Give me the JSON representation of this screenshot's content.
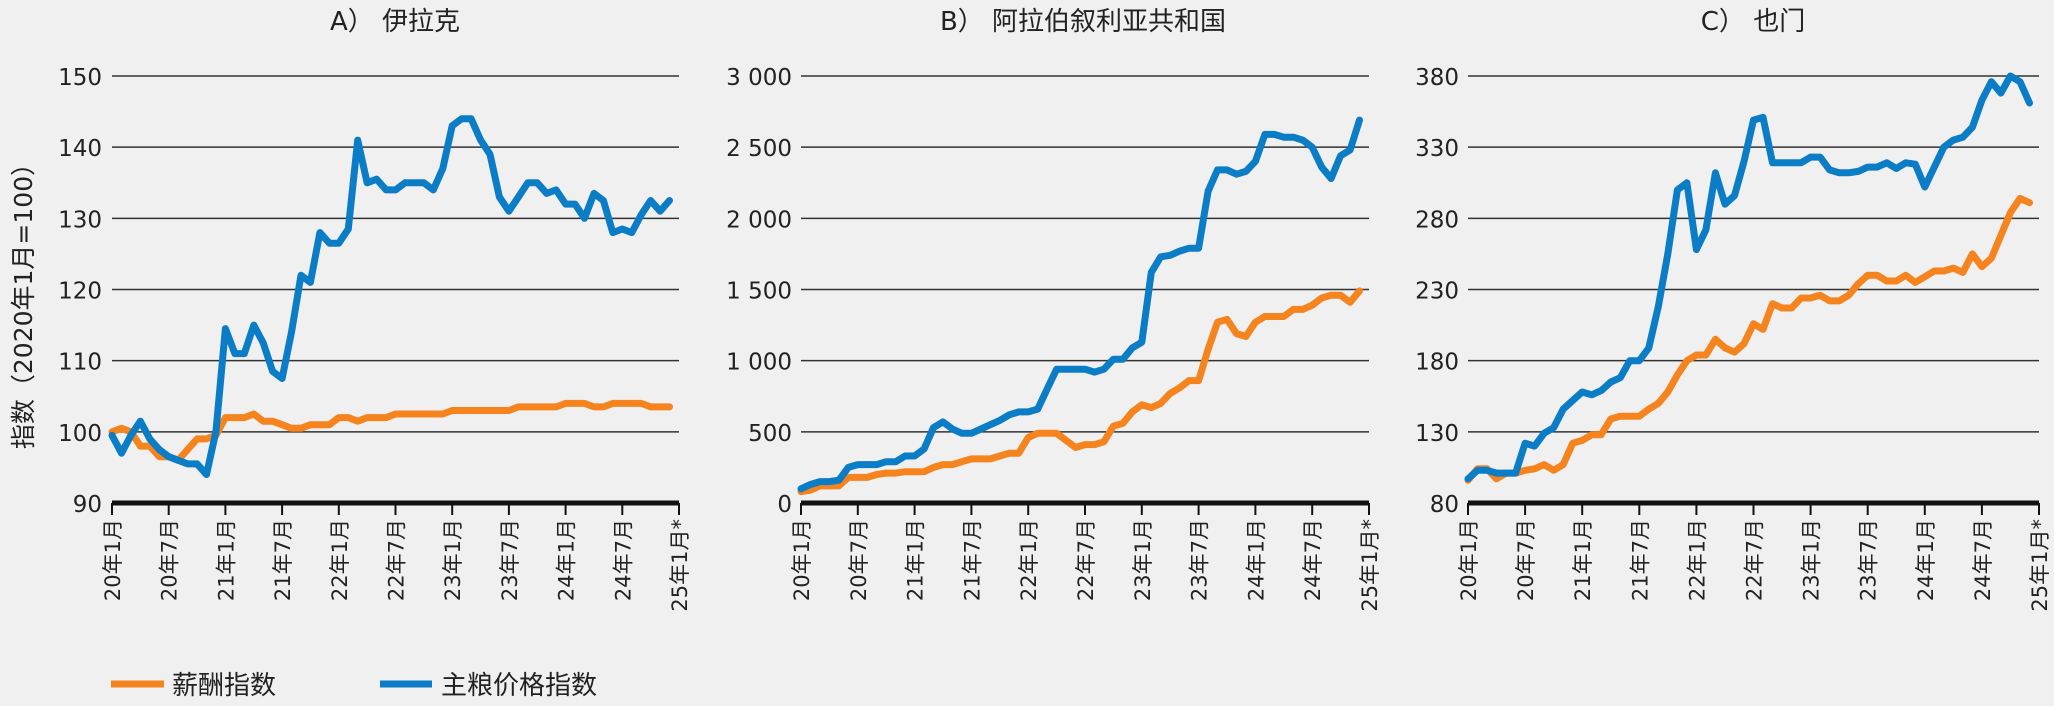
{
  "y_axis_title": "指数（2020年1月=100）",
  "colors": {
    "wage": "#f5841f",
    "staple": "#0b7cc6"
  },
  "legend": [
    {
      "label": "薪酬指数",
      "series": "wage"
    },
    {
      "label": "主粮价格指数",
      "series": "staple"
    }
  ],
  "chart_data": [
    {
      "type": "line",
      "title": "A） 伊拉克",
      "ylabel": "指数（2020年1月=100）",
      "ylim": [
        90,
        150
      ],
      "yticks": [
        "90",
        "100",
        "110",
        "120",
        "130",
        "140",
        "150"
      ],
      "ytick_values": [
        90,
        100,
        110,
        120,
        130,
        140,
        150
      ],
      "xticks": [
        "20年1月",
        "20年7月",
        "21年1月",
        "21年7月",
        "22年1月",
        "22年7月",
        "23年1月",
        "23年7月",
        "24年1月",
        "24年7月",
        "25年1月*"
      ],
      "x_start": "2020-01",
      "x_unit": "month",
      "series": [
        {
          "name": "薪酬指数",
          "key": "wage",
          "values": [
            100,
            100.5,
            100,
            98,
            98,
            96.5,
            96.5,
            96,
            97.5,
            99,
            99,
            99.5,
            102,
            102,
            102,
            102.5,
            101.5,
            101.5,
            101,
            100.5,
            100.5,
            101,
            101,
            101,
            102,
            102,
            101.5,
            102,
            102,
            102,
            102.5,
            102.5,
            102.5,
            102.5,
            102.5,
            102.5,
            103,
            103,
            103,
            103,
            103,
            103,
            103,
            103.5,
            103.5,
            103.5,
            103.5,
            103.5,
            104,
            104,
            104,
            103.5,
            103.5,
            104,
            104,
            104,
            104,
            103.5,
            103.5,
            103.5
          ]
        },
        {
          "name": "主粮价格指数",
          "key": "staple",
          "values": [
            99.5,
            97,
            99.5,
            101.5,
            99,
            97.5,
            96.5,
            96,
            95.5,
            95.5,
            94,
            100,
            114.5,
            111,
            111,
            115,
            112.5,
            108.5,
            107.5,
            114,
            122,
            121,
            128,
            126.5,
            126.5,
            128.5,
            141,
            135,
            135.5,
            134,
            134,
            135,
            135,
            135,
            134,
            137,
            143,
            144,
            144,
            141,
            139,
            133,
            131,
            133,
            135,
            135,
            133.5,
            134,
            132,
            132,
            130,
            133.5,
            132.5,
            128,
            128.5,
            128,
            130.5,
            132.5,
            131,
            132.5
          ]
        }
      ]
    },
    {
      "type": "line",
      "title": "B） 阿拉伯叙利亚共和国",
      "ylim": [
        0,
        3000
      ],
      "yticks": [
        "0",
        "500",
        "1 000",
        "1 500",
        "2 000",
        "2 500",
        "3 000"
      ],
      "ytick_values": [
        0,
        500,
        1000,
        1500,
        2000,
        2500,
        3000
      ],
      "xticks": [
        "20年1月",
        "20年7月",
        "21年1月",
        "21年7月",
        "22年1月",
        "22年7月",
        "23年1月",
        "23年7月",
        "24年1月",
        "24年7月",
        "25年1月*"
      ],
      "x_start": "2020-01",
      "x_unit": "month",
      "series": [
        {
          "name": "薪酬指数",
          "key": "wage",
          "values": [
            80,
            90,
            120,
            120,
            120,
            180,
            180,
            180,
            200,
            210,
            210,
            220,
            220,
            220,
            250,
            270,
            270,
            290,
            310,
            310,
            310,
            330,
            350,
            350,
            460,
            490,
            490,
            490,
            440,
            390,
            410,
            410,
            430,
            540,
            560,
            640,
            690,
            670,
            700,
            770,
            810,
            860,
            860,
            1080,
            1270,
            1290,
            1190,
            1170,
            1270,
            1310,
            1310,
            1310,
            1360,
            1360,
            1390,
            1440,
            1460,
            1460,
            1410,
            1490
          ]
        },
        {
          "name": "主粮价格指数",
          "key": "staple",
          "values": [
            100,
            130,
            150,
            150,
            160,
            250,
            270,
            270,
            270,
            290,
            290,
            330,
            330,
            380,
            530,
            570,
            520,
            490,
            490,
            520,
            550,
            580,
            620,
            640,
            640,
            660,
            800,
            940,
            940,
            940,
            940,
            920,
            940,
            1010,
            1010,
            1090,
            1130,
            1620,
            1730,
            1740,
            1770,
            1790,
            1790,
            2190,
            2340,
            2340,
            2310,
            2330,
            2400,
            2590,
            2590,
            2570,
            2570,
            2550,
            2500,
            2360,
            2280,
            2440,
            2480,
            2690
          ]
        }
      ]
    },
    {
      "type": "line",
      "title": "C） 也门",
      "ylim": [
        80,
        380
      ],
      "yticks": [
        "80",
        "130",
        "180",
        "230",
        "280",
        "330",
        "380"
      ],
      "ytick_values": [
        80,
        130,
        180,
        230,
        280,
        330,
        380
      ],
      "xticks": [
        "20年1月",
        "20年7月",
        "21年1月",
        "21年7月",
        "22年1月",
        "22年7月",
        "23年1月",
        "23年7月",
        "24年1月",
        "24年7月",
        "25年1月*"
      ],
      "x_start": "2020-01",
      "x_unit": "month",
      "series": [
        {
          "name": "薪酬指数",
          "key": "wage",
          "values": [
            96,
            104,
            104,
            97,
            101,
            101,
            103,
            104,
            107,
            103,
            107,
            122,
            124,
            128,
            128,
            139,
            141,
            141,
            141,
            146,
            150,
            158,
            170,
            180,
            184,
            184,
            195,
            189,
            186,
            192,
            206,
            202,
            220,
            217,
            217,
            224,
            224,
            226,
            222,
            222,
            226,
            234,
            240,
            240,
            236,
            236,
            240,
            235,
            239,
            243,
            243,
            245,
            242,
            255,
            246,
            252,
            268,
            284,
            294,
            291
          ]
        },
        {
          "name": "主粮价格指数",
          "key": "staple",
          "values": [
            97,
            103,
            103,
            101,
            101,
            101,
            122,
            120,
            129,
            133,
            146,
            152,
            158,
            156,
            159,
            165,
            168,
            180,
            180,
            189,
            218,
            255,
            300,
            305,
            258,
            272,
            312,
            290,
            296,
            320,
            349,
            351,
            319,
            319,
            319,
            319,
            323,
            323,
            314,
            312,
            312,
            313,
            316,
            316,
            319,
            315,
            319,
            318,
            302,
            316,
            330,
            335,
            337,
            344,
            363,
            376,
            368,
            380,
            376,
            361
          ]
        }
      ]
    }
  ]
}
